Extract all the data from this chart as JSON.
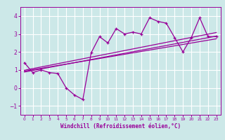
{
  "xlabel": "Windchill (Refroidissement éolien,°C)",
  "xlim": [
    -0.5,
    23.5
  ],
  "ylim": [
    -1.5,
    4.5
  ],
  "yticks": [
    -1,
    0,
    1,
    2,
    3,
    4
  ],
  "xticks": [
    0,
    1,
    2,
    3,
    4,
    5,
    6,
    7,
    8,
    9,
    10,
    11,
    12,
    13,
    14,
    15,
    16,
    17,
    18,
    19,
    20,
    21,
    22,
    23
  ],
  "bg_color": "#cce8e8",
  "grid_color": "#ffffff",
  "line_color": "#990099",
  "main_series_x": [
    0,
    1,
    2,
    3,
    4,
    5,
    6,
    7,
    8,
    9,
    10,
    11,
    12,
    13,
    14,
    15,
    16,
    17,
    18,
    19,
    20,
    21,
    22,
    23
  ],
  "main_series_y": [
    1.4,
    0.85,
    1.0,
    0.85,
    0.8,
    0.0,
    -0.4,
    -0.65,
    1.95,
    2.85,
    2.5,
    3.3,
    3.0,
    3.1,
    3.0,
    3.9,
    3.7,
    3.6,
    2.8,
    2.0,
    2.8,
    3.9,
    2.85,
    2.85
  ],
  "line1_x": [
    0,
    23
  ],
  "line1_y": [
    0.88,
    2.88
  ],
  "line2_x": [
    0,
    23
  ],
  "line2_y": [
    0.93,
    2.73
  ],
  "line3_x": [
    0,
    23
  ],
  "line3_y": [
    0.98,
    3.08
  ],
  "tick_fontsize": 5,
  "xlabel_fontsize": 5.5
}
